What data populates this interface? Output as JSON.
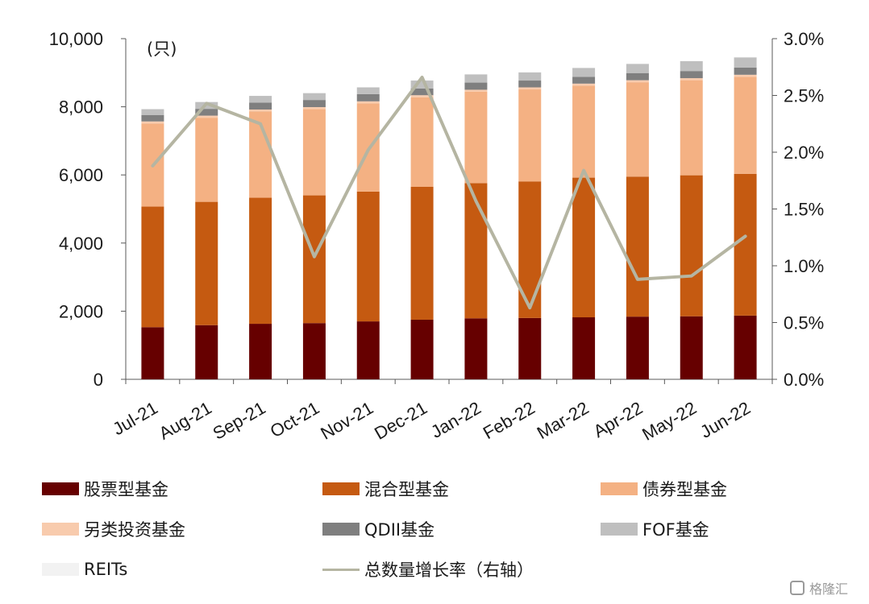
{
  "chart_data": {
    "type": "bar",
    "stacked": true,
    "unit_label": "(只)",
    "categories": [
      "Jul-21",
      "Aug-21",
      "Sep-21",
      "Oct-21",
      "Nov-21",
      "Dec-21",
      "Jan-22",
      "Feb-22",
      "Mar-22",
      "Apr-22",
      "May-22",
      "Jun-22"
    ],
    "left_axis": {
      "min": 0,
      "max": 10000,
      "ticks": [
        "0",
        "2,000",
        "4,000",
        "6,000",
        "8,000",
        "10,000"
      ],
      "tick_values": [
        0,
        2000,
        4000,
        6000,
        8000,
        10000
      ]
    },
    "right_axis": {
      "min": 0,
      "max": 3.0,
      "ticks": [
        "0.0%",
        "0.5%",
        "1.0%",
        "1.5%",
        "2.0%",
        "2.5%",
        "3.0%"
      ],
      "tick_values": [
        0,
        0.5,
        1.0,
        1.5,
        2.0,
        2.5,
        3.0
      ]
    },
    "series": [
      {
        "name": "股票型基金",
        "color": "#660000",
        "values": [
          1530,
          1590,
          1630,
          1650,
          1700,
          1750,
          1790,
          1800,
          1820,
          1840,
          1850,
          1870
        ]
      },
      {
        "name": "混合型基金",
        "color": "#c55a11",
        "values": [
          3540,
          3620,
          3700,
          3750,
          3810,
          3900,
          3970,
          4010,
          4100,
          4110,
          4140,
          4160
        ]
      },
      {
        "name": "债券型基金",
        "color": "#f4b183",
        "values": [
          2440,
          2470,
          2530,
          2530,
          2590,
          2630,
          2680,
          2700,
          2700,
          2770,
          2790,
          2850
        ]
      },
      {
        "name": "另类投资基金",
        "color": "#f8cbad",
        "values": [
          60,
          60,
          60,
          60,
          60,
          60,
          60,
          60,
          60,
          60,
          60,
          60
        ]
      },
      {
        "name": "QDII基金",
        "color": "#7f7f7f",
        "values": [
          190,
          200,
          200,
          210,
          210,
          200,
          210,
          200,
          200,
          210,
          210,
          210
        ]
      },
      {
        "name": "FOF基金",
        "color": "#bfbfbf",
        "values": [
          170,
          200,
          200,
          200,
          200,
          230,
          240,
          240,
          260,
          270,
          290,
          300
        ]
      },
      {
        "name": "REITs",
        "color": "#f2f2f2",
        "values": [
          0,
          0,
          0,
          0,
          0,
          10,
          10,
          10,
          10,
          10,
          10,
          10
        ]
      }
    ],
    "line": {
      "name": "总数量增长率（右轴）",
      "color": "#b5b5a2",
      "axis": "right",
      "values": [
        1.88,
        2.43,
        2.25,
        1.08,
        2.02,
        2.66,
        1.57,
        0.63,
        1.84,
        0.88,
        0.91,
        1.26
      ]
    }
  },
  "legend": [
    {
      "label": "股票型基金",
      "color": "#660000",
      "kind": "bar"
    },
    {
      "label": "混合型基金",
      "color": "#c55a11",
      "kind": "bar"
    },
    {
      "label": "债券型基金",
      "color": "#f4b183",
      "kind": "bar"
    },
    {
      "label": "另类投资基金",
      "color": "#f8cbad",
      "kind": "bar"
    },
    {
      "label": "QDII基金",
      "color": "#7f7f7f",
      "kind": "bar"
    },
    {
      "label": "FOF基金",
      "color": "#bfbfbf",
      "kind": "bar"
    },
    {
      "label": "REITs",
      "color": "#f2f2f2",
      "kind": "bar"
    },
    {
      "label": "总数量增长率（右轴）",
      "color": "#b5b5a2",
      "kind": "line"
    }
  ],
  "watermark": "格隆汇"
}
